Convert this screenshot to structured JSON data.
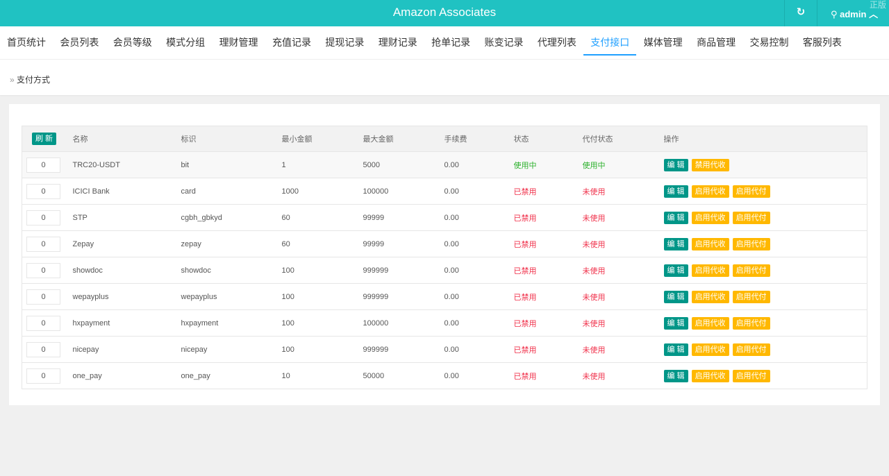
{
  "header": {
    "title": "Amazon Associates",
    "user": "admin",
    "watermark": "正版"
  },
  "nav": [
    "首页统计",
    "会员列表",
    "会员等级",
    "模式分组",
    "理财管理",
    "充值记录",
    "提现记录",
    "理财记录",
    "抢单记录",
    "账变记录",
    "代理列表",
    "支付接口",
    "媒体管理",
    "商品管理",
    "交易控制",
    "客服列表"
  ],
  "active_nav": "支付接口",
  "breadcrumb": "支付方式",
  "table": {
    "refresh_label": "刷 新",
    "columns": [
      "名称",
      "标识",
      "最小金额",
      "最大金额",
      "手续费",
      "状态",
      "代付状态",
      "操作"
    ],
    "edit_label": "编 辑",
    "rows": [
      {
        "sort": "0",
        "name": "TRC20-USDT",
        "code": "bit",
        "min": "1",
        "max": "5000",
        "fee": "0.00",
        "status": "使用中",
        "payout": "使用中",
        "actions": [
          "禁用代收"
        ]
      },
      {
        "sort": "0",
        "name": "ICICI Bank",
        "code": "card",
        "min": "1000",
        "max": "100000",
        "fee": "0.00",
        "status": "已禁用",
        "payout": "未使用",
        "actions": [
          "启用代收",
          "启用代付"
        ]
      },
      {
        "sort": "0",
        "name": "STP",
        "code": "cgbh_gbkyd",
        "min": "60",
        "max": "99999",
        "fee": "0.00",
        "status": "已禁用",
        "payout": "未使用",
        "actions": [
          "启用代收",
          "启用代付"
        ]
      },
      {
        "sort": "0",
        "name": "Zepay",
        "code": "zepay",
        "min": "60",
        "max": "99999",
        "fee": "0.00",
        "status": "已禁用",
        "payout": "未使用",
        "actions": [
          "启用代收",
          "启用代付"
        ]
      },
      {
        "sort": "0",
        "name": "showdoc",
        "code": "showdoc",
        "min": "100",
        "max": "999999",
        "fee": "0.00",
        "status": "已禁用",
        "payout": "未使用",
        "actions": [
          "启用代收",
          "启用代付"
        ]
      },
      {
        "sort": "0",
        "name": "wepayplus",
        "code": "wepayplus",
        "min": "100",
        "max": "999999",
        "fee": "0.00",
        "status": "已禁用",
        "payout": "未使用",
        "actions": [
          "启用代收",
          "启用代付"
        ]
      },
      {
        "sort": "0",
        "name": "hxpayment",
        "code": "hxpayment",
        "min": "100",
        "max": "100000",
        "fee": "0.00",
        "status": "已禁用",
        "payout": "未使用",
        "actions": [
          "启用代收",
          "启用代付"
        ]
      },
      {
        "sort": "0",
        "name": "nicepay",
        "code": "nicepay",
        "min": "100",
        "max": "999999",
        "fee": "0.00",
        "status": "已禁用",
        "payout": "未使用",
        "actions": [
          "启用代收",
          "启用代付"
        ]
      },
      {
        "sort": "0",
        "name": "one_pay",
        "code": "one_pay",
        "min": "10",
        "max": "50000",
        "fee": "0.00",
        "status": "已禁用",
        "payout": "未使用",
        "actions": [
          "启用代收",
          "启用代付"
        ]
      }
    ]
  },
  "colors": {
    "header": "#20c2c2",
    "active": "#1e9fff",
    "edit": "#009688",
    "action": "#ffb800",
    "enabled": "#2ab02a",
    "disabled": "#f0304a"
  }
}
